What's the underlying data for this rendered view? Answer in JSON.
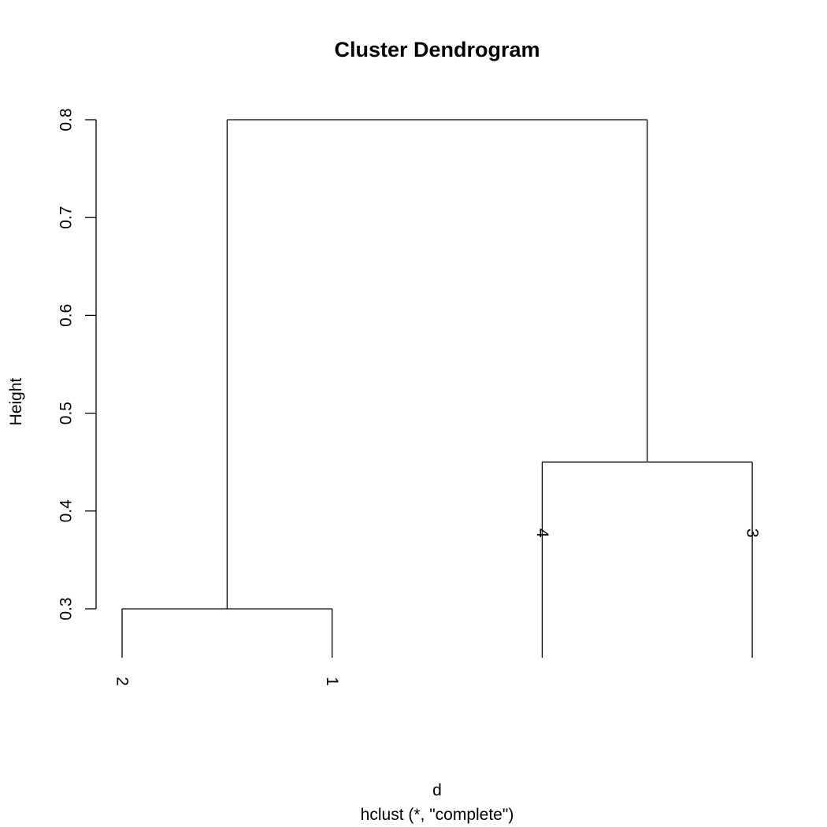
{
  "chart_data": {
    "type": "dendrogram",
    "title": "Cluster Dendrogram",
    "xlabel": "d",
    "sublabel": "hclust (*, \"complete\")",
    "ylabel": "Height",
    "ylim": [
      0.3,
      0.8
    ],
    "yticks": [
      "0.3",
      "0.4",
      "0.5",
      "0.6",
      "0.7",
      "0.8"
    ],
    "leaf_order": [
      "2",
      "1",
      "4",
      "3"
    ],
    "leaf_hang_height": 0.25,
    "merges": [
      {
        "left": "2",
        "right": "1",
        "height": 0.3
      },
      {
        "left": "4",
        "right": "3",
        "height": 0.45
      },
      {
        "left": "A",
        "right": "B",
        "height": 0.8
      }
    ],
    "leaf_label_lowest": 0.25,
    "grid": false,
    "legend": "none",
    "colors": {
      "line": "#000000",
      "background": "#ffffff"
    }
  }
}
